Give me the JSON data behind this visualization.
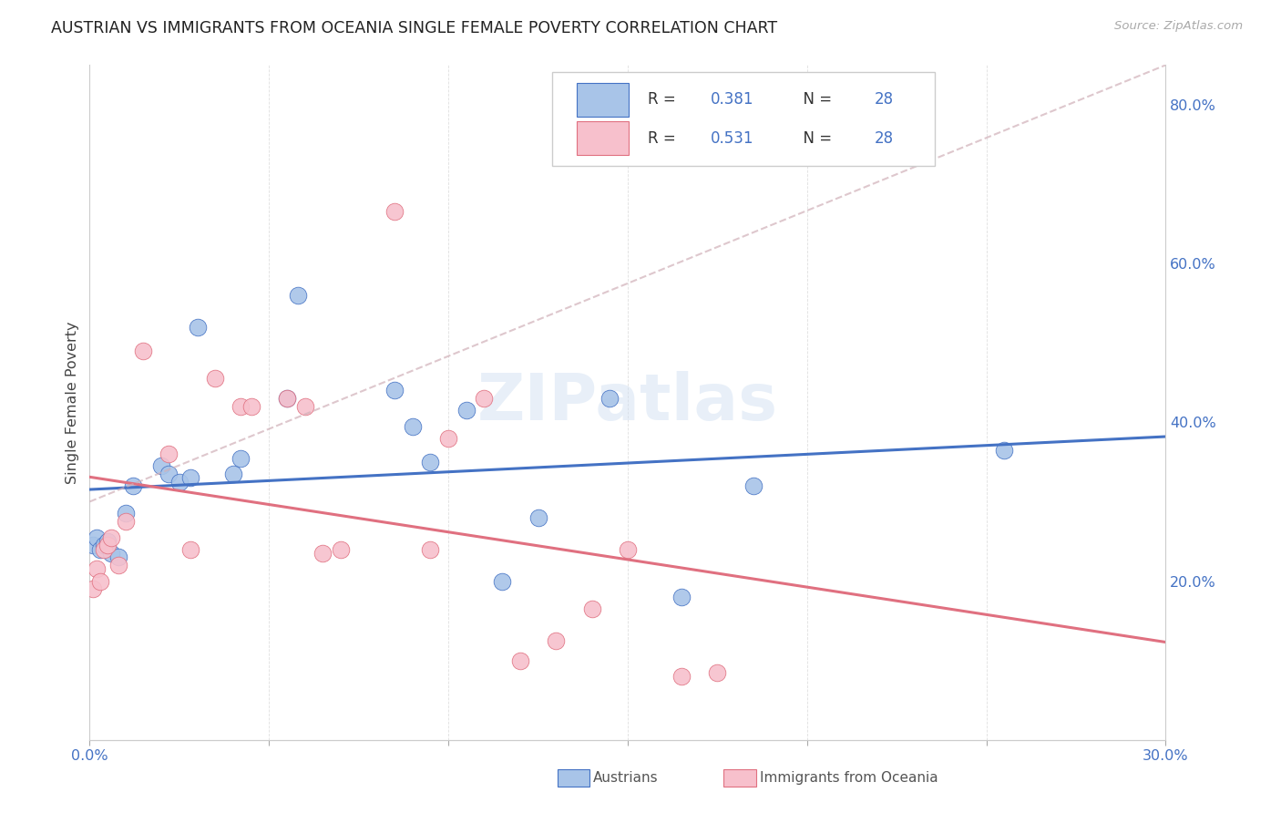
{
  "title": "AUSTRIAN VS IMMIGRANTS FROM OCEANIA SINGLE FEMALE POVERTY CORRELATION CHART",
  "source": "Source: ZipAtlas.com",
  "ylabel": "Single Female Poverty",
  "xlim": [
    0.0,
    0.3
  ],
  "ylim": [
    0.0,
    0.85
  ],
  "color_blue_fill": "#a8c4e8",
  "color_blue_edge": "#4472c4",
  "color_pink_fill": "#f7c0cc",
  "color_pink_edge": "#e07080",
  "color_dashed": "#d0b0b8",
  "watermark": "ZIPatlas",
  "austrians_x": [
    0.001,
    0.002,
    0.003,
    0.004,
    0.005,
    0.006,
    0.008,
    0.01,
    0.012,
    0.02,
    0.022,
    0.025,
    0.028,
    0.03,
    0.04,
    0.042,
    0.055,
    0.058,
    0.085,
    0.09,
    0.095,
    0.105,
    0.115,
    0.125,
    0.145,
    0.165,
    0.185,
    0.255
  ],
  "austrians_y": [
    0.245,
    0.255,
    0.24,
    0.245,
    0.25,
    0.235,
    0.23,
    0.285,
    0.32,
    0.345,
    0.335,
    0.325,
    0.33,
    0.52,
    0.335,
    0.355,
    0.43,
    0.56,
    0.44,
    0.395,
    0.35,
    0.415,
    0.2,
    0.28,
    0.43,
    0.18,
    0.32,
    0.365
  ],
  "oceania_x": [
    0.001,
    0.002,
    0.003,
    0.004,
    0.005,
    0.006,
    0.008,
    0.01,
    0.015,
    0.022,
    0.028,
    0.035,
    0.042,
    0.045,
    0.055,
    0.06,
    0.065,
    0.07,
    0.085,
    0.095,
    0.1,
    0.11,
    0.12,
    0.13,
    0.14,
    0.15,
    0.165,
    0.175
  ],
  "oceania_y": [
    0.19,
    0.215,
    0.2,
    0.24,
    0.245,
    0.255,
    0.22,
    0.275,
    0.49,
    0.36,
    0.24,
    0.455,
    0.42,
    0.42,
    0.43,
    0.42,
    0.235,
    0.24,
    0.665,
    0.24,
    0.38,
    0.43,
    0.1,
    0.125,
    0.165,
    0.24,
    0.08,
    0.085
  ],
  "x_tick_pos": [
    0.0,
    0.05,
    0.1,
    0.15,
    0.2,
    0.25,
    0.3
  ],
  "x_tick_labels": [
    "0.0%",
    "",
    "",
    "",
    "",
    "",
    "30.0%"
  ],
  "y_tick_pos": [
    0.2,
    0.4,
    0.6,
    0.8
  ],
  "y_tick_labels": [
    "20.0%",
    "40.0%",
    "60.0%",
    "80.0%"
  ]
}
